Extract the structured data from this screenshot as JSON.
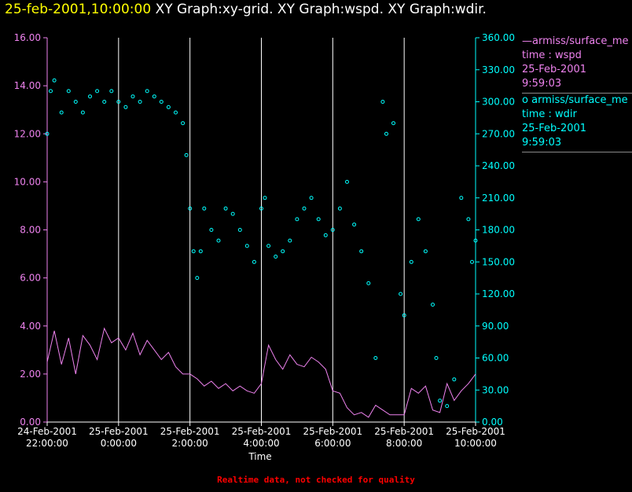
{
  "header": {
    "timestamp": "25-feb-2001,10:00:00",
    "graphs": "XY Graph:xy-grid.  XY Graph:wspd.  XY Graph:wdir."
  },
  "notice": "Realtime data, not checked for quality",
  "legend": {
    "spd": {
      "symbol": "—",
      "name": "armiss/surface_me",
      "var": "time : wspd",
      "date": "25-Feb-2001",
      "time": "9:59:03"
    },
    "dir": {
      "symbol": "o",
      "name": "armiss/surface_me",
      "var": "time : wdir",
      "date": "25-Feb-2001",
      "time": "9:59:03"
    }
  },
  "chart_data": {
    "type": "line+scatter",
    "xlabel": "Time",
    "xlim": [
      -2,
      10
    ],
    "x_ticks": [
      {
        "v": -2,
        "l1": "24-Feb-2001",
        "l2": "22:00:00"
      },
      {
        "v": 0,
        "l1": "25-Feb-2001",
        "l2": "0:00:00"
      },
      {
        "v": 2,
        "l1": "25-Feb-2001",
        "l2": "2:00:00"
      },
      {
        "v": 4,
        "l1": "25-Feb-2001",
        "l2": "4:00:00"
      },
      {
        "v": 6,
        "l1": "25-Feb-2001",
        "l2": "6:00:00"
      },
      {
        "v": 8,
        "l1": "25-Feb-2001",
        "l2": "8:00:00"
      },
      {
        "v": 10,
        "l1": "25-Feb-2001",
        "l2": "10:00:00"
      }
    ],
    "left_axis": {
      "ylim": [
        0,
        16
      ],
      "ticks": [
        "0.00",
        "2.00",
        "4.00",
        "6.00",
        "8.00",
        "10.00",
        "12.00",
        "14.00",
        "16.00"
      ],
      "color": "#ee82ee"
    },
    "right_axis": {
      "ylim": [
        0,
        360
      ],
      "ticks": [
        "0.00",
        "30.00",
        "60.00",
        "90.00",
        "120.00",
        "150.00",
        "180.00",
        "210.00",
        "240.00",
        "270.00",
        "300.00",
        "330.00",
        "360.00"
      ],
      "color": "#00ffff"
    },
    "grid": "vertical",
    "series": [
      {
        "name": "armiss/surface_me (time : wspd)",
        "style": "line",
        "color": "#ee82ee",
        "axis": "left",
        "points": [
          [
            -2,
            2.5
          ],
          [
            -1.8,
            3.8
          ],
          [
            -1.6,
            2.4
          ],
          [
            -1.4,
            3.5
          ],
          [
            -1.2,
            2.0
          ],
          [
            -1,
            3.6
          ],
          [
            -0.8,
            3.2
          ],
          [
            -0.6,
            2.6
          ],
          [
            -0.4,
            3.9
          ],
          [
            -0.2,
            3.3
          ],
          [
            0,
            3.5
          ],
          [
            0.2,
            3.0
          ],
          [
            0.4,
            3.7
          ],
          [
            0.6,
            2.8
          ],
          [
            0.8,
            3.4
          ],
          [
            1,
            3.0
          ],
          [
            1.2,
            2.6
          ],
          [
            1.4,
            2.9
          ],
          [
            1.6,
            2.3
          ],
          [
            1.8,
            2.0
          ],
          [
            2,
            2.0
          ],
          [
            2.2,
            1.8
          ],
          [
            2.4,
            1.5
          ],
          [
            2.6,
            1.7
          ],
          [
            2.8,
            1.4
          ],
          [
            3,
            1.6
          ],
          [
            3.2,
            1.3
          ],
          [
            3.4,
            1.5
          ],
          [
            3.6,
            1.3
          ],
          [
            3.8,
            1.2
          ],
          [
            4,
            1.6
          ],
          [
            4.2,
            3.2
          ],
          [
            4.4,
            2.6
          ],
          [
            4.6,
            2.2
          ],
          [
            4.8,
            2.8
          ],
          [
            5,
            2.4
          ],
          [
            5.2,
            2.3
          ],
          [
            5.4,
            2.7
          ],
          [
            5.6,
            2.5
          ],
          [
            5.8,
            2.2
          ],
          [
            6,
            1.3
          ],
          [
            6.2,
            1.2
          ],
          [
            6.4,
            0.6
          ],
          [
            6.6,
            0.3
          ],
          [
            6.8,
            0.4
          ],
          [
            7,
            0.2
          ],
          [
            7.2,
            0.7
          ],
          [
            7.4,
            0.5
          ],
          [
            7.6,
            0.3
          ],
          [
            7.8,
            0.3
          ],
          [
            8,
            0.3
          ],
          [
            8.2,
            1.4
          ],
          [
            8.4,
            1.2
          ],
          [
            8.6,
            1.5
          ],
          [
            8.8,
            0.5
          ],
          [
            9,
            0.4
          ],
          [
            9.2,
            1.6
          ],
          [
            9.4,
            0.9
          ],
          [
            9.6,
            1.3
          ],
          [
            9.8,
            1.6
          ],
          [
            10,
            2.0
          ]
        ]
      },
      {
        "name": "armiss/surface_me (time : wdir)",
        "style": "scatter",
        "color": "#00ffff",
        "axis": "right",
        "points": [
          [
            -2,
            270
          ],
          [
            -1.9,
            310
          ],
          [
            -1.8,
            320
          ],
          [
            -1.6,
            290
          ],
          [
            -1.4,
            310
          ],
          [
            -1.2,
            300
          ],
          [
            -1,
            290
          ],
          [
            -0.8,
            305
          ],
          [
            -0.6,
            310
          ],
          [
            -0.4,
            300
          ],
          [
            -0.2,
            310
          ],
          [
            0,
            300
          ],
          [
            0.2,
            295
          ],
          [
            0.4,
            305
          ],
          [
            0.6,
            300
          ],
          [
            0.8,
            310
          ],
          [
            1,
            305
          ],
          [
            1.2,
            300
          ],
          [
            1.4,
            295
          ],
          [
            1.6,
            290
          ],
          [
            1.8,
            280
          ],
          [
            1.9,
            250
          ],
          [
            2,
            200
          ],
          [
            2.1,
            160
          ],
          [
            2.2,
            135
          ],
          [
            2.3,
            160
          ],
          [
            2.4,
            200
          ],
          [
            2.6,
            180
          ],
          [
            2.8,
            170
          ],
          [
            3,
            200
          ],
          [
            3.2,
            195
          ],
          [
            3.4,
            180
          ],
          [
            3.6,
            165
          ],
          [
            3.8,
            150
          ],
          [
            4,
            200
          ],
          [
            4.1,
            210
          ],
          [
            4.2,
            165
          ],
          [
            4.4,
            155
          ],
          [
            4.6,
            160
          ],
          [
            4.8,
            170
          ],
          [
            5,
            190
          ],
          [
            5.2,
            200
          ],
          [
            5.4,
            210
          ],
          [
            5.6,
            190
          ],
          [
            5.8,
            175
          ],
          [
            6,
            180
          ],
          [
            6.2,
            200
          ],
          [
            6.4,
            225
          ],
          [
            6.6,
            185
          ],
          [
            6.8,
            160
          ],
          [
            7,
            130
          ],
          [
            7.2,
            60
          ],
          [
            7.4,
            300
          ],
          [
            7.5,
            270
          ],
          [
            7.7,
            280
          ],
          [
            7.9,
            120
          ],
          [
            8,
            100
          ],
          [
            8.2,
            150
          ],
          [
            8.4,
            190
          ],
          [
            8.6,
            160
          ],
          [
            8.8,
            110
          ],
          [
            8.9,
            60
          ],
          [
            9.0,
            20
          ],
          [
            9.2,
            15
          ],
          [
            9.4,
            40
          ],
          [
            9.6,
            210
          ],
          [
            9.8,
            190
          ],
          [
            9.9,
            150
          ],
          [
            10,
            170
          ]
        ]
      }
    ]
  }
}
